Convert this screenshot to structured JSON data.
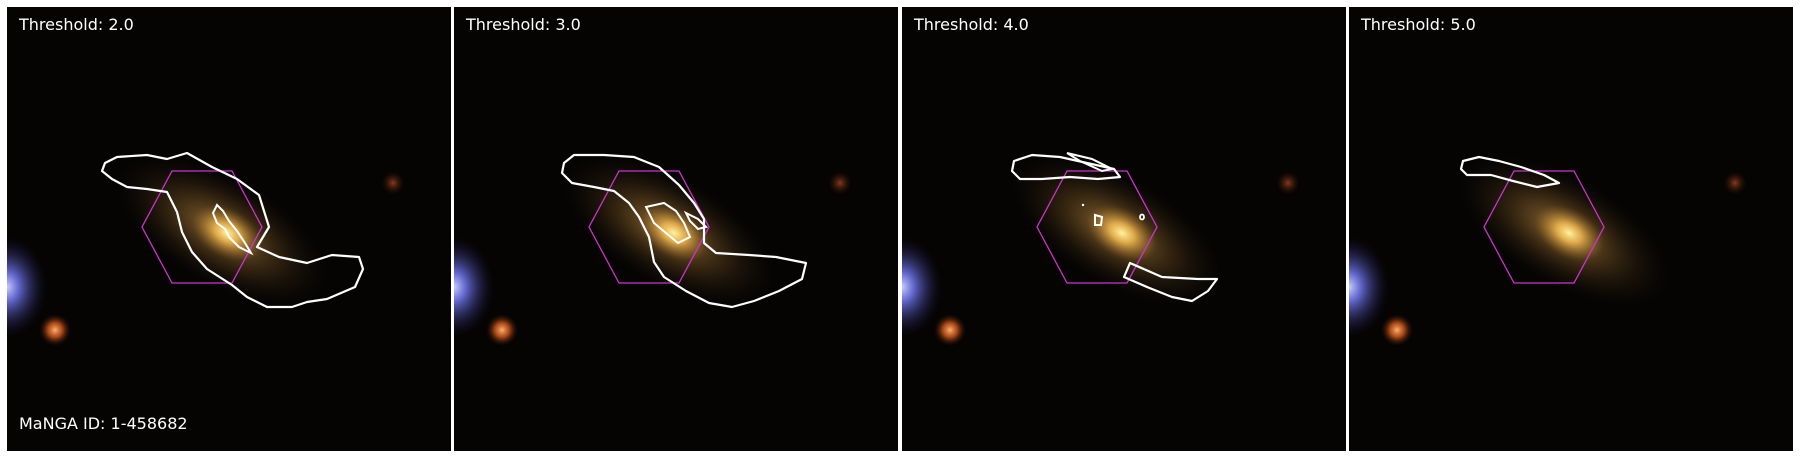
{
  "galaxy_id": "MaNGA ID: 1-458682",
  "colors": {
    "contour": "#ffffff",
    "ifu_hexagon": "#cc33cc",
    "background": "#050403",
    "galaxy_core": "#ffe48a",
    "bright_star": "#8a93ff",
    "red_star": "#ff8a3a"
  },
  "panels": [
    {
      "threshold_label": "Threshold: 2.0"
    },
    {
      "threshold_label": "Threshold: 3.0"
    },
    {
      "threshold_label": "Threshold: 4.0"
    },
    {
      "threshold_label": "Threshold: 5.0"
    }
  ]
}
